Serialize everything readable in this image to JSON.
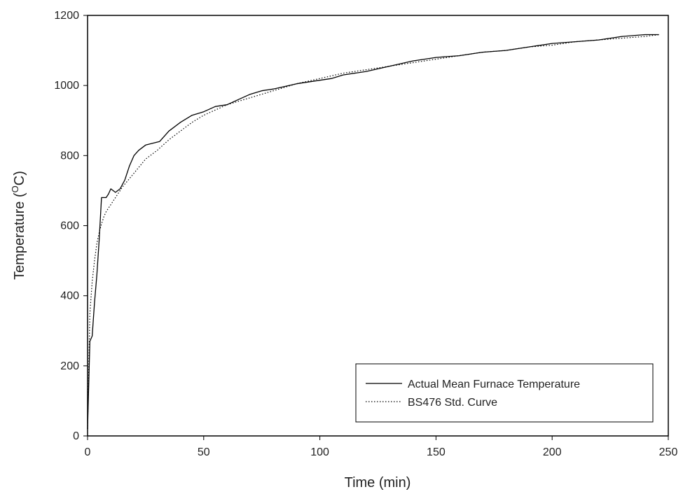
{
  "chart_data": {
    "type": "line",
    "title": "",
    "xlabel": "Time (min)",
    "ylabel_prefix": "Temperature (",
    "ylabel_sup": "O",
    "ylabel_suffix": "C)",
    "xlim": [
      0,
      250
    ],
    "ylim": [
      0,
      1200
    ],
    "xticks": [
      0,
      50,
      100,
      150,
      200,
      250
    ],
    "yticks": [
      0,
      200,
      400,
      600,
      800,
      1000,
      1200
    ],
    "grid": false,
    "legend_position": "bottom-right",
    "series": [
      {
        "name": "Actual Mean Furnace Temperature",
        "style": "solid",
        "color": "#000000",
        "x": [
          0,
          1,
          2,
          3,
          4,
          5,
          6,
          7,
          8,
          9,
          10,
          11,
          12,
          14,
          16,
          18,
          20,
          22,
          25,
          28,
          31,
          35,
          40,
          45,
          50,
          55,
          60,
          65,
          70,
          75,
          80,
          90,
          100,
          105,
          110,
          120,
          130,
          140,
          150,
          160,
          170,
          180,
          190,
          200,
          210,
          220,
          230,
          240,
          246
        ],
        "y": [
          20,
          270,
          285,
          380,
          460,
          560,
          680,
          680,
          680,
          690,
          705,
          700,
          695,
          705,
          730,
          770,
          800,
          815,
          830,
          835,
          840,
          870,
          895,
          915,
          925,
          940,
          945,
          960,
          975,
          985,
          990,
          1005,
          1015,
          1020,
          1030,
          1040,
          1055,
          1070,
          1080,
          1085,
          1095,
          1100,
          1110,
          1120,
          1125,
          1130,
          1140,
          1145,
          1145
        ]
      },
      {
        "name": "BS476 Std. Curve",
        "style": "dotted",
        "color": "#000000",
        "x": [
          0,
          1,
          2,
          3,
          4,
          5,
          6,
          7,
          8,
          10,
          12,
          15,
          20,
          25,
          30,
          35,
          40,
          45,
          50,
          60,
          70,
          80,
          90,
          100,
          110,
          120,
          130,
          140,
          150,
          160,
          170,
          180,
          190,
          200,
          210,
          220,
          230,
          240,
          246
        ],
        "y": [
          20,
          350,
          440,
          500,
          550,
          580,
          605,
          625,
          640,
          660,
          680,
          710,
          750,
          790,
          815,
          845,
          870,
          895,
          915,
          945,
          965,
          985,
          1005,
          1020,
          1035,
          1045,
          1055,
          1065,
          1075,
          1085,
          1095,
          1100,
          1110,
          1115,
          1125,
          1130,
          1135,
          1140,
          1145
        ]
      }
    ]
  }
}
